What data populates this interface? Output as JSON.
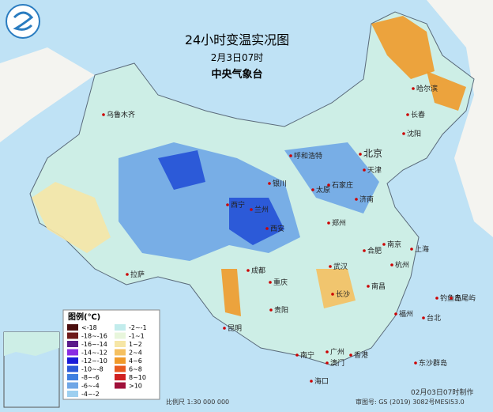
{
  "header": {
    "title": "24小时变温实况图",
    "time": "2月3日07时",
    "agency": "中央气象台"
  },
  "legend": {
    "title": "图例(℃)",
    "items": [
      {
        "label": "<-18",
        "color": "#4a0e0e"
      },
      {
        "label": "-18~-16",
        "color": "#6e1a1a"
      },
      {
        "label": "-16~-14",
        "color": "#5a1a8a"
      },
      {
        "label": "-14~-12",
        "color": "#8a2be2"
      },
      {
        "label": "-12~-10",
        "color": "#1a1ad8"
      },
      {
        "label": "-10~-8",
        "color": "#2c5ad8"
      },
      {
        "label": "-8~-6",
        "color": "#3f7fe0"
      },
      {
        "label": "-6~-4",
        "color": "#6fa6e6"
      },
      {
        "label": "-4~-2",
        "color": "#9ccff0"
      },
      {
        "label": "-2~-1",
        "color": "#c2ecec"
      },
      {
        "label": "-1~1",
        "color": "#e8f6dc"
      },
      {
        "label": "1~2",
        "color": "#f6e6a6"
      },
      {
        "label": "2~4",
        "color": "#f5c060"
      },
      {
        "label": "4~6",
        "color": "#f09a2a"
      },
      {
        "label": "6~8",
        "color": "#e85a20"
      },
      {
        "label": "8~10",
        "color": "#d02020"
      },
      {
        "label": ">10",
        "color": "#a0103a"
      }
    ]
  },
  "cities": [
    "乌鲁木齐",
    "哈尔滨",
    "长春",
    "沈阳",
    "北京",
    "天津",
    "呼和浩特",
    "银川",
    "石家庄",
    "太原",
    "济南",
    "西宁",
    "兰州",
    "郑州",
    "西安",
    "合肥",
    "南京",
    "上海",
    "杭州",
    "拉萨",
    "成都",
    "重庆",
    "武汉",
    "长沙",
    "南昌",
    "贵阳",
    "昆明",
    "福州",
    "台北",
    "南宁",
    "广州",
    "澳门",
    "香港",
    "海口",
    "钓鱼岛",
    "赤尾屿",
    "东沙群岛"
  ],
  "footer": {
    "scale": "比例尺 1:30 000 000",
    "approval": "审图号: GS (2019) 3082号MESI53.0",
    "made": "02月03日07时制作"
  }
}
